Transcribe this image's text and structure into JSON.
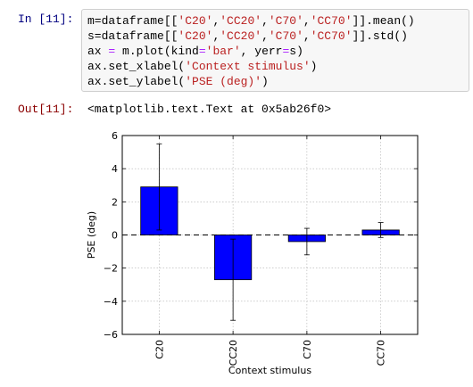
{
  "cell": {
    "in_prompt": "In [11]:",
    "code_lines": [
      [
        [
          "m=dataframe[[",
          ""
        ],
        [
          "'C20'",
          "str"
        ],
        [
          ",",
          ""
        ],
        [
          "'CC20'",
          "str"
        ],
        [
          ",",
          ""
        ],
        [
          "'C70'",
          "str"
        ],
        [
          ",",
          ""
        ],
        [
          "'CC70'",
          "str"
        ],
        [
          "]].mean()",
          ""
        ]
      ],
      [
        [
          "s=dataframe[[",
          ""
        ],
        [
          "'C20'",
          "str"
        ],
        [
          ",",
          ""
        ],
        [
          "'CC20'",
          "str"
        ],
        [
          ",",
          ""
        ],
        [
          "'C70'",
          "str"
        ],
        [
          ",",
          ""
        ],
        [
          "'CC70'",
          "str"
        ],
        [
          "]].std()",
          ""
        ]
      ],
      [
        [
          "ax ",
          ""
        ],
        [
          "=",
          "op"
        ],
        [
          " m.plot(kind",
          ""
        ],
        [
          "=",
          "op"
        ],
        [
          "'bar'",
          "str"
        ],
        [
          ", yerr",
          ""
        ],
        [
          "=",
          "op"
        ],
        [
          "s)",
          ""
        ]
      ],
      [
        [
          "ax.set_xlabel(",
          ""
        ],
        [
          "'Context stimulus'",
          "str"
        ],
        [
          ")",
          ""
        ]
      ],
      [
        [
          "ax.set_ylabel(",
          ""
        ],
        [
          "'PSE (deg)'",
          "str"
        ],
        [
          ")",
          ""
        ]
      ]
    ],
    "out_prompt": "Out[11]:",
    "output_text": "<matplotlib.text.Text at 0x5ab26f0>"
  },
  "chart_data": {
    "type": "bar",
    "categories": [
      "C20",
      "CC20",
      "C70",
      "CC70"
    ],
    "values": [
      2.9,
      -2.7,
      -0.4,
      0.3
    ],
    "errors": [
      2.6,
      2.45,
      0.8,
      0.45
    ],
    "xlabel": "Context stimulus",
    "ylabel": "PSE (deg)",
    "ylim": [
      -6,
      6
    ],
    "yticks": [
      -6,
      -4,
      -2,
      0,
      2,
      4,
      6
    ],
    "ytick_labels": [
      "−6",
      "−4",
      "−2",
      "0",
      "2",
      "4",
      "6"
    ],
    "grid": true,
    "bar_color": "#0000ff",
    "zero_line": "dashed"
  }
}
